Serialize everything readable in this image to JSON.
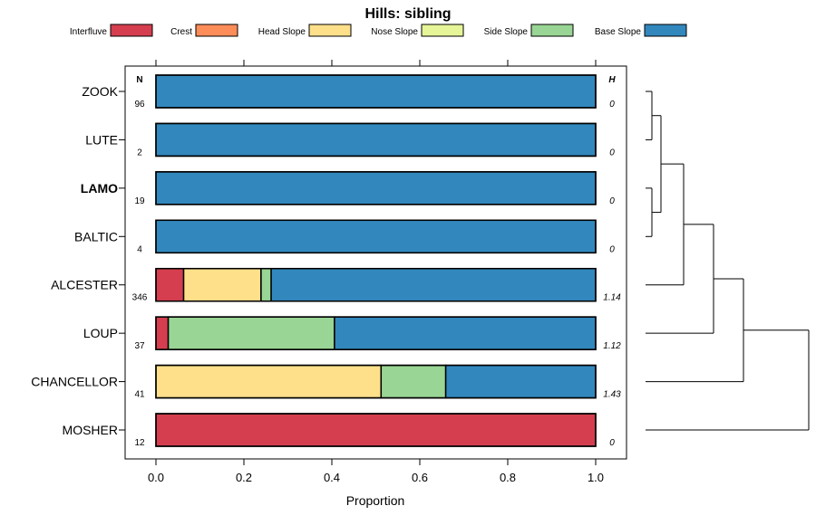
{
  "chart_data": {
    "type": "bar",
    "orientation": "horizontal",
    "stacked": true,
    "title": "Hills: sibling",
    "xlabel": "Proportion",
    "ylabel": "",
    "xlim": [
      0,
      1
    ],
    "x_ticks": [
      0,
      0.2,
      0.4,
      0.6,
      0.8,
      1
    ],
    "x_tick_labels": [
      "0.0",
      "0.2",
      "0.4",
      "0.6",
      "0.8",
      "1.0"
    ],
    "n_header": "N",
    "h_header": "H",
    "legend_position": "top",
    "categories": [
      "ZOOK",
      "LUTE",
      "LAMO",
      "BALTIC",
      "ALCESTER",
      "LOUP",
      "CHANCELLOR",
      "MOSHER"
    ],
    "bold_category": "LAMO",
    "n": [
      "96",
      "2",
      "19",
      "4",
      "346",
      "37",
      "41",
      "12"
    ],
    "h": [
      "0",
      "0",
      "0",
      "0",
      "1.14",
      "1.12",
      "1.43",
      "0"
    ],
    "series": [
      {
        "name": "Interfluve",
        "color": "#d53e4f",
        "values": [
          0,
          0,
          0,
          0,
          0.063,
          0.028,
          0,
          1
        ]
      },
      {
        "name": "Crest",
        "color": "#fc8d59",
        "values": [
          0,
          0,
          0,
          0,
          0,
          0,
          0,
          0
        ]
      },
      {
        "name": "Head Slope",
        "color": "#fee08b",
        "values": [
          0,
          0,
          0,
          0,
          0.176,
          0,
          0.512,
          0
        ]
      },
      {
        "name": "Nose Slope",
        "color": "#e6f598",
        "values": [
          0,
          0,
          0,
          0,
          0,
          0,
          0,
          0
        ]
      },
      {
        "name": "Side Slope",
        "color": "#99d594",
        "values": [
          0,
          0,
          0,
          0,
          0.023,
          0.378,
          0.147,
          0
        ]
      },
      {
        "name": "Base Slope",
        "color": "#3288bd",
        "values": [
          1,
          1,
          1,
          1,
          0.738,
          0.594,
          0.341,
          0
        ]
      }
    ],
    "dendrogram": {
      "description": "hierarchical clustering of categories",
      "merges": [
        {
          "id": "a",
          "members": [
            "ZOOK",
            "LUTE"
          ]
        },
        {
          "id": "b",
          "members": [
            "LAMO",
            "BALTIC"
          ]
        },
        {
          "id": "c",
          "members": [
            "a",
            "b"
          ]
        },
        {
          "id": "d",
          "members": [
            "c",
            "ALCESTER"
          ]
        },
        {
          "id": "e",
          "members": [
            "d",
            "LOUP"
          ]
        },
        {
          "id": "f",
          "members": [
            "e",
            "CHANCELLOR"
          ]
        },
        {
          "id": "g",
          "members": [
            "f",
            "MOSHER"
          ]
        }
      ]
    }
  }
}
